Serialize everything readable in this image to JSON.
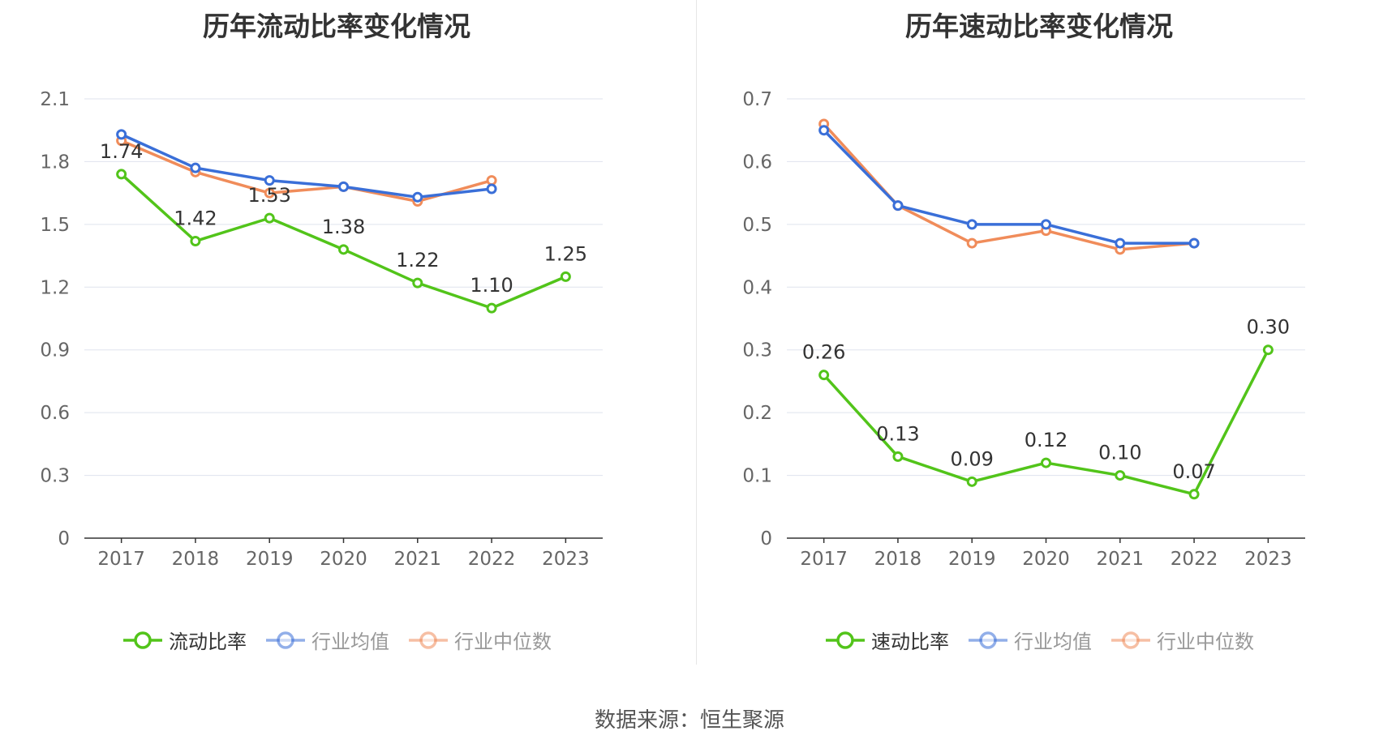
{
  "chart_data": [
    {
      "type": "line",
      "title": "历年流动比率变化情况",
      "categories": [
        "2017",
        "2018",
        "2019",
        "2020",
        "2021",
        "2022",
        "2023"
      ],
      "ylim": [
        0,
        2.1
      ],
      "yticks": [
        "0",
        "0.3",
        "0.6",
        "0.9",
        "1.2",
        "1.5",
        "1.8",
        "2.1"
      ],
      "ytick_values": [
        0,
        0.3,
        0.6,
        0.9,
        1.2,
        1.5,
        1.8,
        2.1
      ],
      "grid": true,
      "legend_position": "bottom",
      "series": [
        {
          "name": "流动比率",
          "color": "#52c41a",
          "values": [
            1.74,
            1.42,
            1.53,
            1.38,
            1.22,
            1.1,
            1.25
          ],
          "labels": [
            "1.74",
            "1.42",
            "1.53",
            "1.38",
            "1.22",
            "1.10",
            "1.25"
          ]
        },
        {
          "name": "行业均值",
          "color": "#3a6fd8",
          "values": [
            1.93,
            1.77,
            1.71,
            1.68,
            1.63,
            1.67,
            null
          ]
        },
        {
          "name": "行业中位数",
          "color": "#f08c5a",
          "values": [
            1.9,
            1.75,
            1.65,
            1.68,
            1.61,
            1.71,
            null
          ]
        }
      ]
    },
    {
      "type": "line",
      "title": "历年速动比率变化情况",
      "categories": [
        "2017",
        "2018",
        "2019",
        "2020",
        "2021",
        "2022",
        "2023"
      ],
      "ylim": [
        0,
        0.7
      ],
      "yticks": [
        "0",
        "0.1",
        "0.2",
        "0.3",
        "0.4",
        "0.5",
        "0.6",
        "0.7"
      ],
      "ytick_values": [
        0,
        0.1,
        0.2,
        0.3,
        0.4,
        0.5,
        0.6,
        0.7
      ],
      "grid": true,
      "legend_position": "bottom",
      "series": [
        {
          "name": "速动比率",
          "color": "#52c41a",
          "values": [
            0.26,
            0.13,
            0.09,
            0.12,
            0.1,
            0.07,
            0.3
          ],
          "labels": [
            "0.26",
            "0.13",
            "0.09",
            "0.12",
            "0.10",
            "0.07",
            "0.30"
          ]
        },
        {
          "name": "行业均值",
          "color": "#3a6fd8",
          "values": [
            0.65,
            0.53,
            0.5,
            0.5,
            0.47,
            0.47,
            null
          ]
        },
        {
          "name": "行业中位数",
          "color": "#f08c5a",
          "values": [
            0.66,
            0.53,
            0.47,
            0.49,
            0.46,
            0.47,
            null
          ]
        }
      ]
    }
  ],
  "footer": {
    "source": "数据来源：恒生聚源"
  }
}
